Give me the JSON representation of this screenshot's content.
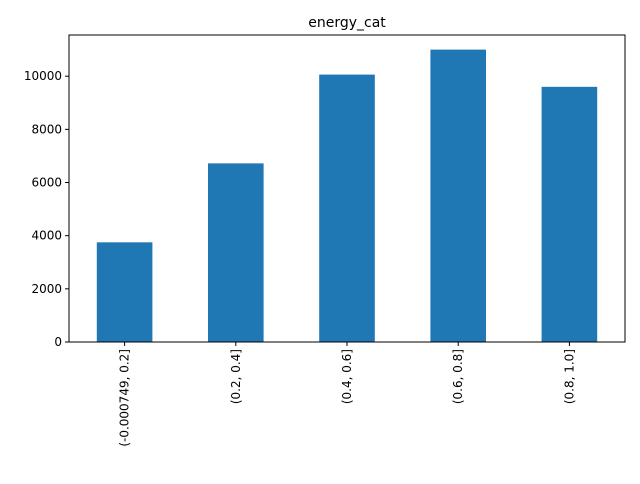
{
  "chart_data": {
    "type": "bar",
    "title": "energy_cat",
    "xlabel": "",
    "ylabel": "",
    "categories": [
      "(-0.000749, 0.2]",
      "(0.2, 0.4]",
      "(0.4, 0.6]",
      "(0.6, 0.8]",
      "(0.8, 1.0]"
    ],
    "values": [
      3750,
      6720,
      10060,
      11000,
      9600
    ],
    "ylim": [
      0,
      11550
    ],
    "yticks": [
      0,
      2000,
      4000,
      6000,
      8000,
      10000
    ],
    "grid": false,
    "legend": "none",
    "colors": {
      "bar": "#1f77b4",
      "axis": "#000000",
      "background": "#ffffff"
    }
  }
}
